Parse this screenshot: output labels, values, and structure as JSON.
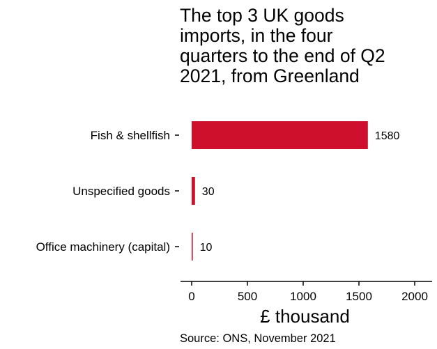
{
  "chart_data": {
    "type": "bar",
    "orientation": "horizontal",
    "title": "The top 3 UK goods\nimports, in the four\nquarters to the end of Q2\n2021, from Greenland",
    "categories": [
      "Fish & shellfish",
      "Unspecified goods",
      "Office machinery (capital)"
    ],
    "values": [
      1580,
      30,
      10
    ],
    "data_labels": [
      "1580",
      "30",
      "10"
    ],
    "xlabel": "£ thousand",
    "ylabel": "",
    "xlim": [
      0,
      2000
    ],
    "xticks": [
      0,
      500,
      1000,
      1500,
      2000
    ],
    "xtick_labels": [
      "0",
      "500",
      "1000",
      "1500",
      "2000"
    ],
    "grid": false,
    "bar_color": "#cf102d",
    "source": "Source: ONS, November 2021"
  }
}
